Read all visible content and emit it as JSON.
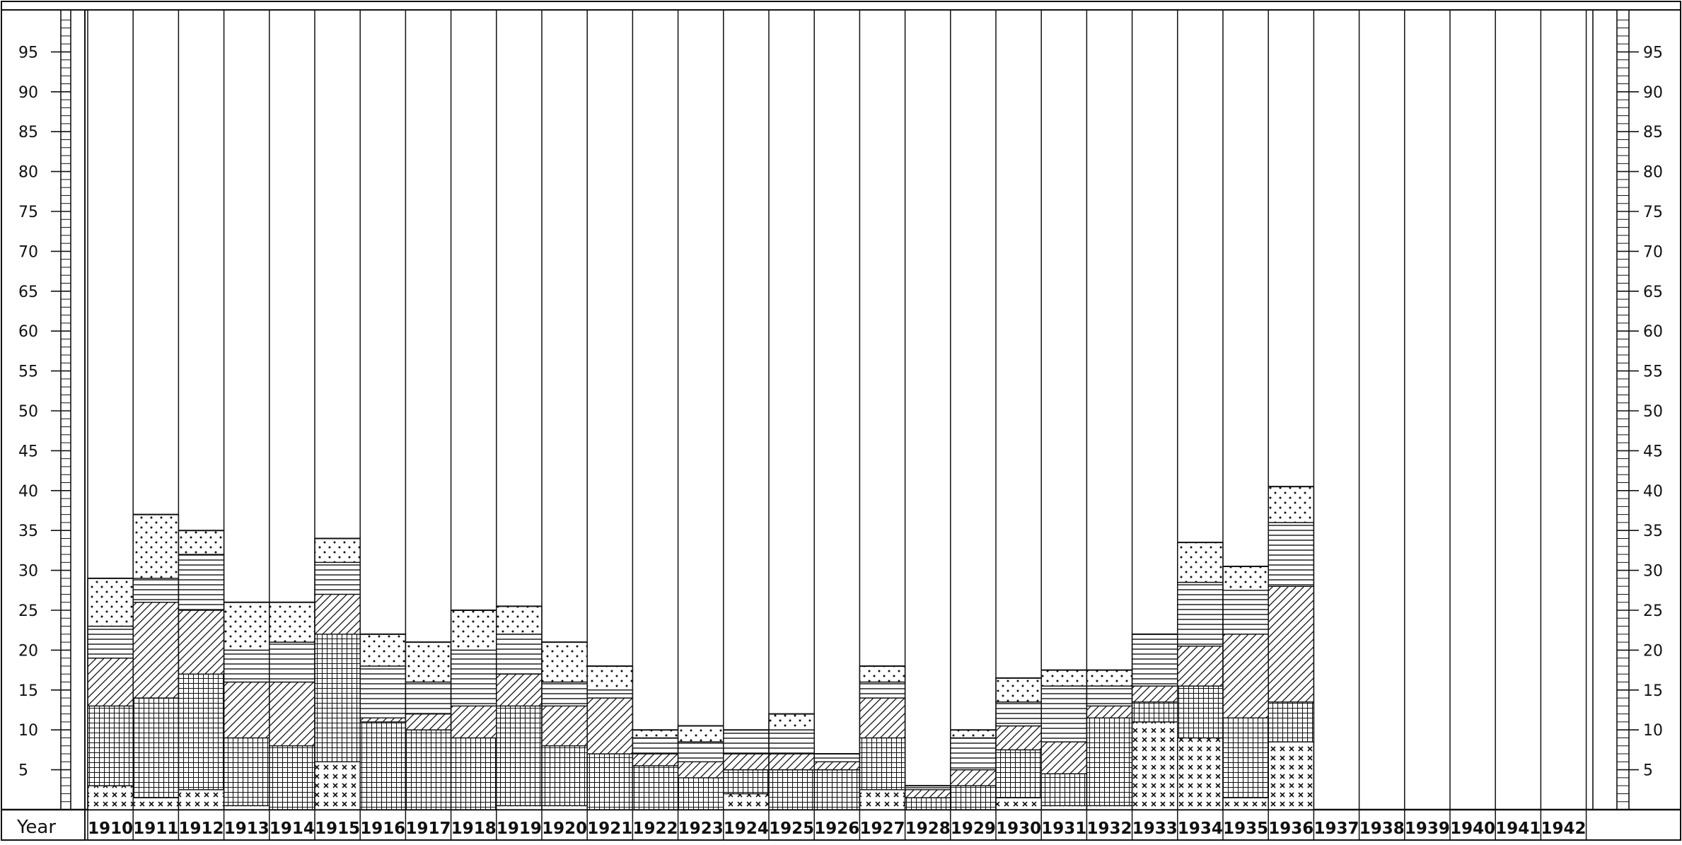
{
  "chart_data": {
    "type": "bar",
    "stacked": true,
    "x_header": "Year",
    "categories": [
      "1910",
      "1911",
      "1912",
      "1913",
      "1914",
      "1915",
      "1916",
      "1917",
      "1918",
      "1919",
      "1920",
      "1921",
      "1922",
      "1923",
      "1924",
      "1925",
      "1926",
      "1927",
      "1928",
      "1929",
      "1930",
      "1931",
      "1932",
      "1933",
      "1934",
      "1935",
      "1936",
      "1937",
      "1938",
      "1939",
      "1940",
      "1941",
      "1942"
    ],
    "y_ticks": [
      "5",
      "10",
      "15",
      "20",
      "25",
      "30",
      "35",
      "40",
      "45",
      "50",
      "55",
      "60",
      "65",
      "70",
      "75",
      "80",
      "85",
      "90",
      "95"
    ],
    "ylim": [
      0,
      100
    ],
    "grid": false,
    "legend": "none",
    "series": [
      {
        "pattern": "cross-x",
        "values": [
          3,
          1.5,
          2.5,
          0.5,
          0,
          6,
          0,
          0,
          0,
          0.5,
          0.5,
          0,
          0,
          0,
          2,
          0,
          0,
          2.5,
          0,
          0,
          1.5,
          0.5,
          0.5,
          11,
          9,
          1.5,
          8.5,
          0,
          0,
          0,
          0,
          0,
          0
        ]
      },
      {
        "pattern": "grid",
        "values": [
          10,
          12.5,
          14.5,
          8.5,
          8,
          16,
          11,
          10,
          9,
          12.5,
          7.5,
          7,
          5.5,
          4,
          3,
          5,
          5,
          6.5,
          1.5,
          3,
          6,
          4,
          11,
          2.5,
          6.5,
          10,
          5,
          0,
          0,
          0,
          0,
          0,
          0
        ]
      },
      {
        "pattern": "diagonal",
        "values": [
          6,
          12,
          8,
          7,
          8,
          5,
          0.5,
          2,
          4,
          4,
          5,
          7,
          1.5,
          2,
          2,
          2,
          1,
          5,
          1,
          2,
          3,
          4,
          1.5,
          2,
          5,
          10.5,
          14.5,
          0,
          0,
          0,
          0,
          0,
          0
        ]
      },
      {
        "pattern": "horizontal",
        "values": [
          4,
          3,
          7,
          4,
          5,
          4,
          6.5,
          4,
          7,
          5,
          3,
          1,
          2,
          2.5,
          3,
          3,
          1,
          2,
          0.5,
          4,
          3,
          7,
          2.5,
          6.5,
          8,
          5.5,
          8,
          0,
          0,
          0,
          0,
          0,
          0
        ]
      },
      {
        "pattern": "dots",
        "values": [
          6,
          8,
          3,
          6,
          5,
          3,
          4,
          5,
          5,
          3.5,
          5,
          3,
          1,
          2,
          0,
          2,
          0,
          2,
          0,
          1,
          3,
          2,
          2,
          0,
          5,
          3,
          4.5,
          0,
          0,
          0,
          0,
          0,
          0
        ]
      }
    ],
    "totals": [
      29,
      37,
      35,
      26,
      26,
      34,
      22,
      21,
      25,
      25.5,
      21,
      18,
      10,
      10.5,
      10,
      12,
      7,
      18,
      3,
      10,
      16.5,
      17.5,
      17.5,
      22,
      33.5,
      30.5,
      40.5,
      0,
      0,
      0,
      0,
      0,
      0
    ],
    "colors": {
      "ink": "#111111",
      "paper": "#ffffff"
    }
  }
}
